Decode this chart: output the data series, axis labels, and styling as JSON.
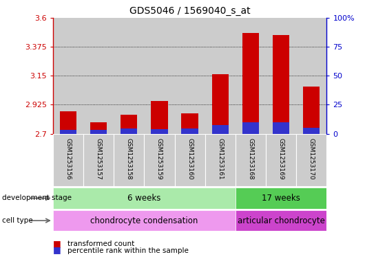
{
  "title": "GDS5046 / 1569040_s_at",
  "samples": [
    "GSM1253156",
    "GSM1253157",
    "GSM1253158",
    "GSM1253159",
    "GSM1253160",
    "GSM1253161",
    "GSM1253168",
    "GSM1253169",
    "GSM1253170"
  ],
  "transformed_count": [
    2.875,
    2.79,
    2.845,
    2.955,
    2.855,
    3.16,
    3.48,
    3.465,
    3.065
  ],
  "percentile_rank": [
    3.0,
    3.5,
    4.5,
    4.0,
    4.5,
    7.5,
    10.0,
    10.0,
    5.0
  ],
  "y_min": 2.7,
  "y_max": 3.6,
  "y_ticks": [
    2.7,
    2.925,
    3.15,
    3.375,
    3.6
  ],
  "y_tick_labels": [
    "2.7",
    "2.925",
    "3.15",
    "3.375",
    "3.6"
  ],
  "y2_ticks": [
    0,
    25,
    50,
    75,
    100
  ],
  "y2_tick_labels": [
    "0",
    "25",
    "50",
    "75",
    "100%"
  ],
  "bar_color_red": "#cc0000",
  "bar_color_blue": "#3333cc",
  "left_axis_color": "#cc0000",
  "right_axis_color": "#0000cc",
  "grid_color": "#000000",
  "sample_bg_color": "#cccccc",
  "dev_stage_6w_color": "#aaeaaa",
  "dev_stage_17w_color": "#55cc55",
  "cell_type_cc_color": "#ee99ee",
  "cell_type_ac_color": "#cc44cc",
  "dev_stage_6w_label": "6 weeks",
  "dev_stage_17w_label": "17 weeks",
  "cell_type_cc_label": "chondrocyte condensation",
  "cell_type_ac_label": "articular chondrocyte",
  "dev_stage_row_label": "development stage",
  "cell_type_row_label": "cell type",
  "legend_red_label": "transformed count",
  "legend_blue_label": "percentile rank within the sample",
  "n_6weeks": 6,
  "n_17weeks": 3
}
